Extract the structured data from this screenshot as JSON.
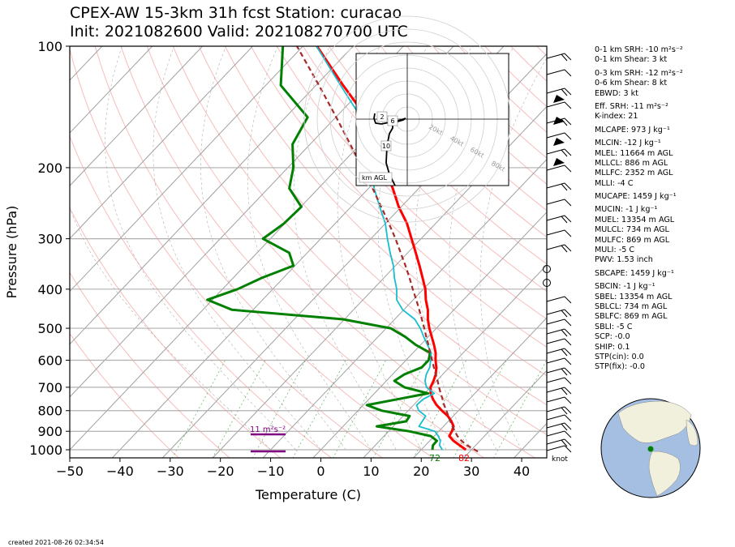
{
  "header": {
    "title_line1": "CPEX-AW 15-3km  31h fcst  Station: curacao",
    "title_line2": "Init: 2021082600  Valid: 202108270700 UTC"
  },
  "footer": {
    "created": "created 2021-08-26 02:34:54"
  },
  "params": [
    "0-1 km SRH: -10 m²s⁻²",
    "0-1 km Shear: 3 kt",
    "0-3 km SRH: -12 m²s⁻²",
    "0-6 km Shear: 8 kt",
    "EBWD: 3 kt",
    "Eff. SRH: -11 m²s⁻²",
    "K-index: 21",
    "MLCAPE: 973 J kg⁻¹",
    "MLCIN: -12 J kg⁻¹",
    "MLEL: 11664 m AGL",
    "MLLCL: 886 m AGL",
    "MLLFC: 2352 m AGL",
    "MLLI: -4 C",
    "MUCAPE: 1459 J kg⁻¹",
    "MUCIN: -1 J kg⁻¹",
    "MUEL: 13354 m AGL",
    "MULCL: 734 m AGL",
    "MULFC: 869 m AGL",
    "MULI: -5 C",
    "PWV: 1.53 inch",
    "SBCAPE: 1459 J kg⁻¹",
    "SBCIN: -1 J kg⁻¹",
    "SBEL: 13354 m AGL",
    "SBLCL: 734 m AGL",
    "SBLFC: 869 m AGL",
    "SBLI: -5 C",
    "SCP: -0.0",
    "SHIP: 0.1",
    "STP(cin): 0.0",
    "STP(fix): -0.0"
  ],
  "chart_data": {
    "type": "line",
    "subtype": "skew-T log-p",
    "xlabel": "Temperature (C)",
    "ylabel": "Pressure (hPa)",
    "xlim": [
      -50,
      45
    ],
    "ylim": [
      1050,
      100
    ],
    "y_scale": "log",
    "x_ticks": [
      -50,
      -40,
      -30,
      -20,
      -10,
      0,
      10,
      20,
      30,
      40
    ],
    "y_ticks": [
      100,
      200,
      300,
      400,
      500,
      600,
      700,
      800,
      900,
      1000
    ],
    "colors": {
      "temperature": "#ff0000",
      "dewpoint": "#008000",
      "wetbulb": "#17becf",
      "parcel": "#a52a2a",
      "isotherm": "#a0a0a0",
      "dry_adiabat": "#f4a0a0",
      "mixing_ratio": "#2ca02c",
      "srh_bar": "#800080"
    },
    "series": [
      {
        "key": "temperature",
        "points": [
          [
            28.9,
            1000
          ],
          [
            26.8,
            975
          ],
          [
            24.7,
            950
          ],
          [
            23.0,
            925
          ],
          [
            22.6,
            900
          ],
          [
            22.0,
            875
          ],
          [
            20.6,
            850
          ],
          [
            18.9,
            825
          ],
          [
            16.7,
            800
          ],
          [
            14.6,
            775
          ],
          [
            12.8,
            750
          ],
          [
            11.2,
            725
          ],
          [
            10.0,
            700
          ],
          [
            9.4,
            675
          ],
          [
            8.6,
            650
          ],
          [
            7.4,
            625
          ],
          [
            5.9,
            600
          ],
          [
            4.5,
            575
          ],
          [
            2.7,
            550
          ],
          [
            0.7,
            525
          ],
          [
            -1.4,
            500
          ],
          [
            -3.4,
            475
          ],
          [
            -5.2,
            450
          ],
          [
            -7.5,
            425
          ],
          [
            -9.6,
            400
          ],
          [
            -12.3,
            375
          ],
          [
            -15.2,
            350
          ],
          [
            -18.4,
            325
          ],
          [
            -21.9,
            300
          ],
          [
            -25.7,
            275
          ],
          [
            -30.5,
            250
          ],
          [
            -35.2,
            225
          ],
          [
            -40.7,
            200
          ],
          [
            -46.4,
            175
          ],
          [
            -53.9,
            150
          ],
          [
            -64.6,
            125
          ],
          [
            -77.2,
            100
          ]
        ]
      },
      {
        "key": "dewpoint",
        "points": [
          [
            22.2,
            1000
          ],
          [
            21.5,
            975
          ],
          [
            21.4,
            950
          ],
          [
            19.3,
            925
          ],
          [
            14.1,
            900
          ],
          [
            6.7,
            875
          ],
          [
            11.6,
            850
          ],
          [
            11.3,
            825
          ],
          [
            4.7,
            800
          ],
          [
            0.7,
            775
          ],
          [
            5.6,
            750
          ],
          [
            10.7,
            725
          ],
          [
            4.8,
            700
          ],
          [
            1.6,
            675
          ],
          [
            2.4,
            650
          ],
          [
            4.5,
            625
          ],
          [
            4.5,
            600
          ],
          [
            3.4,
            575
          ],
          [
            -0.9,
            550
          ],
          [
            -4.6,
            525
          ],
          [
            -9.1,
            500
          ],
          [
            -20.3,
            475
          ],
          [
            -44.2,
            450
          ],
          [
            -51.0,
            425
          ],
          [
            -47.0,
            400
          ],
          [
            -44.3,
            375
          ],
          [
            -40.3,
            350
          ],
          [
            -43.6,
            325
          ],
          [
            -51.5,
            300
          ],
          [
            -50.2,
            275
          ],
          [
            -49.9,
            250
          ],
          [
            -55.8,
            225
          ],
          [
            -58.9,
            200
          ],
          [
            -63.5,
            175
          ],
          [
            -65.6,
            150
          ],
          [
            -77.0,
            125
          ],
          [
            -84.0,
            100
          ]
        ]
      },
      {
        "key": "wetbulb",
        "points": [
          [
            24.2,
            1000
          ],
          [
            22.8,
            975
          ],
          [
            22.1,
            950
          ],
          [
            20.8,
            925
          ],
          [
            19.2,
            900
          ],
          [
            15.1,
            875
          ],
          [
            14.8,
            850
          ],
          [
            14.5,
            825
          ],
          [
            12.1,
            800
          ],
          [
            10.6,
            775
          ],
          [
            10.8,
            750
          ],
          [
            11.9,
            725
          ],
          [
            9.2,
            700
          ],
          [
            7.7,
            675
          ],
          [
            6.7,
            650
          ],
          [
            6.1,
            625
          ],
          [
            4.9,
            600
          ],
          [
            3.6,
            575
          ],
          [
            1.4,
            550
          ],
          [
            -0.9,
            525
          ],
          [
            -3.2,
            500
          ],
          [
            -6.0,
            475
          ],
          [
            -10.2,
            450
          ],
          [
            -13.3,
            425
          ],
          [
            -15.3,
            400
          ],
          [
            -17.9,
            375
          ],
          [
            -20.4,
            350
          ],
          [
            -23.5,
            325
          ],
          [
            -26.7,
            300
          ],
          [
            -30.0,
            275
          ],
          [
            -34.3,
            250
          ],
          [
            -38.9,
            225
          ],
          [
            -43.4,
            200
          ],
          [
            -47.9,
            175
          ],
          [
            -55.0,
            150
          ],
          [
            -65.1,
            125
          ],
          [
            -77.3,
            100
          ]
        ]
      },
      {
        "key": "parcel",
        "points": [
          [
            31.6,
            1010
          ],
          [
            28.3,
            975
          ],
          [
            26.3,
            950
          ],
          [
            24.6,
            925
          ],
          [
            23.2,
            900
          ],
          [
            21.8,
            875
          ],
          [
            20.4,
            850
          ],
          [
            19.0,
            825
          ],
          [
            17.6,
            800
          ],
          [
            16.1,
            775
          ],
          [
            14.7,
            750
          ],
          [
            13.2,
            725
          ],
          [
            11.7,
            700
          ],
          [
            10.2,
            675
          ],
          [
            8.6,
            650
          ],
          [
            6.9,
            625
          ],
          [
            5.2,
            600
          ],
          [
            3.4,
            575
          ],
          [
            1.6,
            550
          ],
          [
            -0.4,
            525
          ],
          [
            -2.4,
            500
          ],
          [
            -4.6,
            475
          ],
          [
            -6.9,
            450
          ],
          [
            -9.4,
            425
          ],
          [
            -12.1,
            400
          ],
          [
            -14.9,
            375
          ],
          [
            -18.0,
            350
          ],
          [
            -21.4,
            325
          ],
          [
            -25.1,
            300
          ],
          [
            -29.3,
            275
          ],
          [
            -34.0,
            250
          ],
          [
            -39.2,
            225
          ],
          [
            -45.2,
            200
          ],
          [
            -52.0,
            175
          ],
          [
            -59.9,
            150
          ],
          [
            -69.4,
            125
          ],
          [
            -81.2,
            100
          ]
        ]
      }
    ],
    "surface_labels": {
      "dewpoint_f": "72",
      "temperature_f": "82"
    },
    "srh_label": "11 m²s⁻²",
    "hodograph": {
      "ring_labels": [
        "20kt",
        "40kt",
        "60kt",
        "80kt"
      ],
      "height_labels": [
        "2",
        "6",
        "10"
      ],
      "legend": "km AGL"
    },
    "wind_barb_unit": "knot"
  }
}
